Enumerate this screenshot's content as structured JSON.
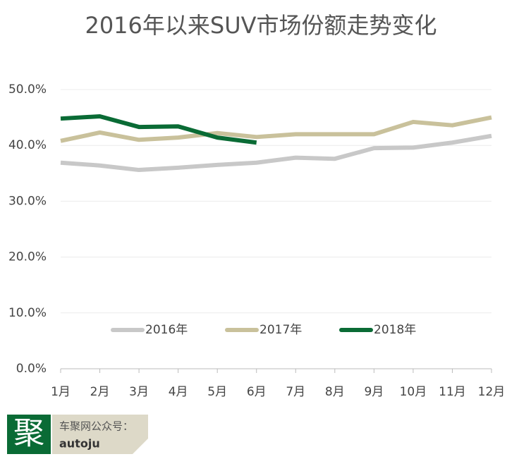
{
  "chart_data": {
    "type": "line",
    "title": "2016年以来SUV市场份额走势变化",
    "categories": [
      "1月",
      "2月",
      "3月",
      "4月",
      "5月",
      "6月",
      "7月",
      "8月",
      "9月",
      "10月",
      "11月",
      "12月"
    ],
    "series": [
      {
        "name": "2016年",
        "color": "#c8c8c8",
        "values": [
          36.9,
          36.4,
          35.6,
          36.0,
          36.5,
          36.9,
          37.8,
          37.6,
          39.5,
          39.6,
          40.5,
          41.7
        ]
      },
      {
        "name": "2017年",
        "color": "#c9c19b",
        "values": [
          40.8,
          42.3,
          41.0,
          41.4,
          42.2,
          41.5,
          42.0,
          42.0,
          42.0,
          44.2,
          43.6,
          45.0
        ]
      },
      {
        "name": "2018年",
        "color": "#0a6b35",
        "values": [
          44.8,
          45.2,
          43.3,
          43.4,
          41.4,
          40.5,
          null,
          null,
          null,
          null,
          null,
          null
        ]
      }
    ],
    "ylim": [
      0,
      50
    ],
    "yticks": [
      {
        "value": 0,
        "label": "0.0%"
      },
      {
        "value": 10,
        "label": "10.0%"
      },
      {
        "value": 20,
        "label": "20.0%"
      },
      {
        "value": 30,
        "label": "30.0%"
      },
      {
        "value": 40,
        "label": "40.0%"
      },
      {
        "value": 50,
        "label": "50.0%"
      }
    ],
    "grid": true,
    "legend": "bottom"
  },
  "footer": {
    "logo": "聚",
    "caption": "车聚网公众号：",
    "account": "autoju"
  }
}
